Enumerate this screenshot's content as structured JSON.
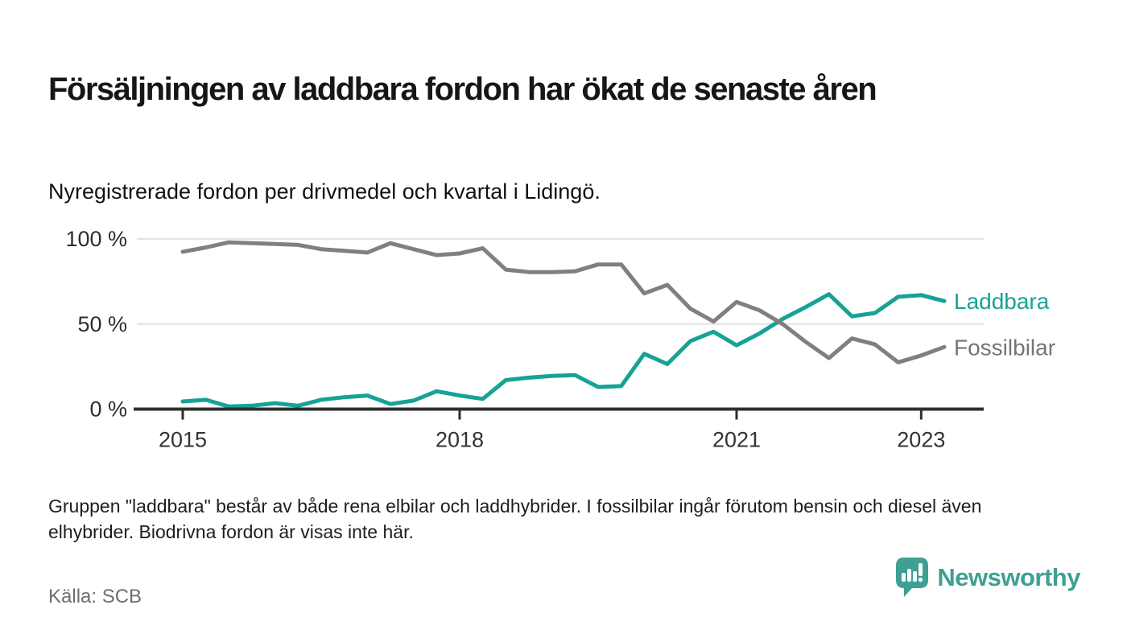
{
  "header": {
    "title": "Försäljningen av laddbara fordon har ökat de senaste åren",
    "subtitle": "Nyregistrerade fordon per drivmedel och kvartal i Lidingö."
  },
  "chart_data": {
    "type": "line",
    "title": "Försäljningen av laddbara fordon har ökat de senaste åren",
    "subtitle": "Nyregistrerade fordon per drivmedel och kvartal i Lidingö.",
    "xlabel": "",
    "ylabel": "",
    "ylim": [
      0,
      100
    ],
    "grid": "horizontal",
    "legend_position": "right-of-line-end",
    "x_quarters": [
      "2015 Q1",
      "2015 Q2",
      "2015 Q3",
      "2015 Q4",
      "2016 Q1",
      "2016 Q2",
      "2016 Q3",
      "2016 Q4",
      "2017 Q1",
      "2017 Q2",
      "2017 Q3",
      "2017 Q4",
      "2018 Q1",
      "2018 Q2",
      "2018 Q3",
      "2018 Q4",
      "2019 Q1",
      "2019 Q2",
      "2019 Q3",
      "2019 Q4",
      "2020 Q1",
      "2020 Q2",
      "2020 Q3",
      "2020 Q4",
      "2021 Q1",
      "2021 Q2",
      "2021 Q3",
      "2021 Q4",
      "2022 Q1",
      "2022 Q2",
      "2022 Q3",
      "2022 Q4",
      "2023 Q1",
      "2023 Q2"
    ],
    "series": [
      {
        "name": "Laddbara",
        "color": "#17a296",
        "label_color": "#17a296",
        "values": [
          4.5,
          5.5,
          1.5,
          2,
          3.5,
          2,
          5.5,
          7,
          8,
          3,
          5,
          10.5,
          8,
          6,
          17,
          18.5,
          19.5,
          20,
          13,
          13.5,
          32.5,
          26.5,
          40,
          45.5,
          37.5,
          44.5,
          53,
          60,
          67.5,
          54.5,
          56.5,
          66,
          67,
          63.5
        ]
      },
      {
        "name": "Fossilbilar",
        "color": "#808080",
        "label_color": "#757575",
        "values": [
          92.5,
          95,
          98,
          97.5,
          97,
          96.5,
          94,
          93,
          92,
          97.5,
          94,
          90.5,
          91.5,
          94.5,
          82,
          80.5,
          80.5,
          81,
          85,
          85,
          68,
          73,
          59,
          51.5,
          63,
          58,
          50,
          39.5,
          30,
          41.5,
          38,
          27.5,
          31.5,
          36.5
        ]
      }
    ],
    "yticks": [
      {
        "value": 0,
        "label": "0 %"
      },
      {
        "value": 50,
        "label": "50 %"
      },
      {
        "value": 100,
        "label": "100 %"
      }
    ],
    "xticks": [
      {
        "year": 2015,
        "label": "2015"
      },
      {
        "year": 2018,
        "label": "2018"
      },
      {
        "year": 2021,
        "label": "2021"
      },
      {
        "year": 2023,
        "label": "2023"
      }
    ]
  },
  "footnote": "Gruppen \"laddbara\" består av både rena elbilar och laddhybrider. I fossilbilar ingår förutom bensin och diesel även elhybrider. Biodrivna fordon är visas inte här.",
  "footer": {
    "source": "Källa: SCB",
    "brand": "Newsworthy"
  },
  "colors": {
    "accent_teal": "#17a296",
    "line_gray": "#808080",
    "gridline": "#e2e2e2",
    "axis": "#2e2e2e",
    "brand_teal": "#3da093"
  }
}
